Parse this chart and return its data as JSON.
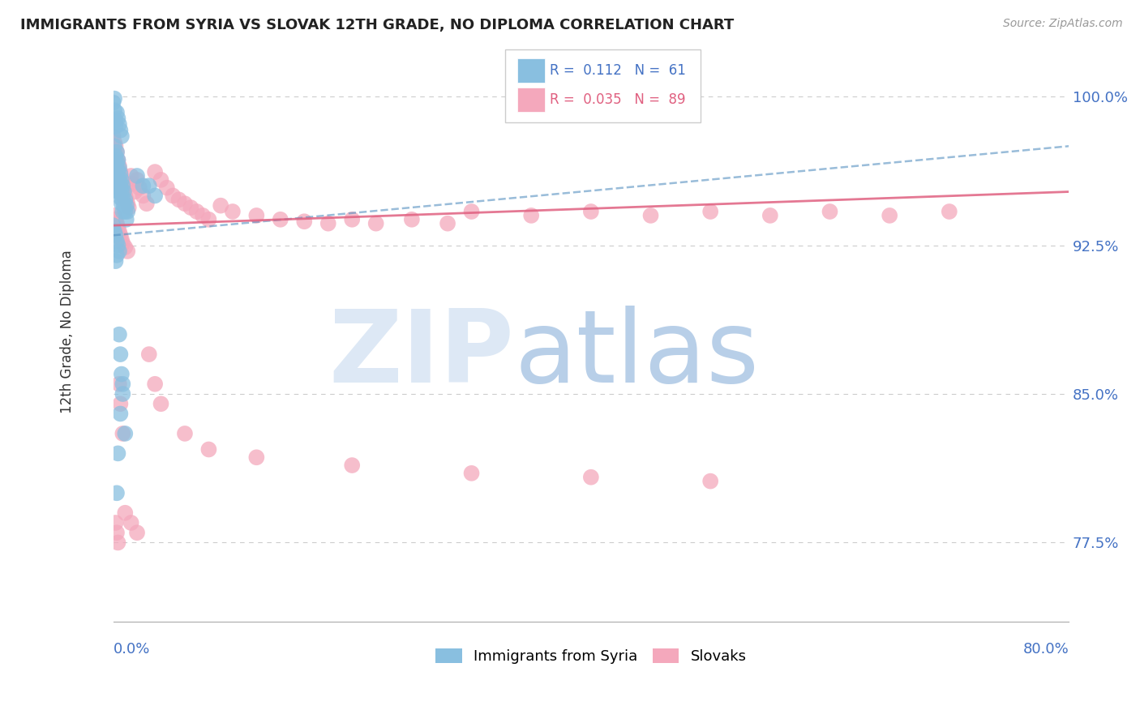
{
  "title": "IMMIGRANTS FROM SYRIA VS SLOVAK 12TH GRADE, NO DIPLOMA CORRELATION CHART",
  "source": "Source: ZipAtlas.com",
  "ylabel": "12th Grade, No Diploma",
  "ytick_labels": [
    "77.5%",
    "85.0%",
    "92.5%",
    "100.0%"
  ],
  "ytick_values": [
    0.775,
    0.85,
    0.925,
    1.0
  ],
  "xlim": [
    0.0,
    0.8
  ],
  "ylim": [
    0.735,
    1.028
  ],
  "blue_color": "#89bfe0",
  "pink_color": "#f4a8bc",
  "blue_line_color": "#5590c0",
  "pink_line_color": "#e06080",
  "blue_trend_x": [
    0.0,
    0.8
  ],
  "blue_trend_y": [
    0.93,
    0.975
  ],
  "pink_trend_x": [
    0.0,
    0.8
  ],
  "pink_trend_y": [
    0.935,
    0.952
  ],
  "syria_x": [
    0.001,
    0.002,
    0.002,
    0.003,
    0.003,
    0.003,
    0.003,
    0.004,
    0.004,
    0.004,
    0.004,
    0.005,
    0.005,
    0.005,
    0.006,
    0.006,
    0.006,
    0.007,
    0.007,
    0.007,
    0.008,
    0.008,
    0.008,
    0.009,
    0.009,
    0.01,
    0.01,
    0.011,
    0.011,
    0.012,
    0.0,
    0.001,
    0.001,
    0.002,
    0.002,
    0.003,
    0.004,
    0.005,
    0.006,
    0.007,
    0.0,
    0.001,
    0.002,
    0.003,
    0.004,
    0.005,
    0.003,
    0.002,
    0.02,
    0.025,
    0.03,
    0.035,
    0.008,
    0.006,
    0.004,
    0.003,
    0.005,
    0.006,
    0.007,
    0.008,
    0.01
  ],
  "syria_y": [
    0.975,
    0.97,
    0.965,
    0.972,
    0.967,
    0.96,
    0.955,
    0.968,
    0.963,
    0.958,
    0.952,
    0.964,
    0.958,
    0.952,
    0.961,
    0.955,
    0.949,
    0.958,
    0.952,
    0.946,
    0.955,
    0.948,
    0.942,
    0.952,
    0.945,
    0.948,
    0.942,
    0.945,
    0.938,
    0.942,
    0.997,
    0.999,
    0.993,
    0.988,
    0.985,
    0.992,
    0.989,
    0.986,
    0.983,
    0.98,
    0.935,
    0.932,
    0.93,
    0.927,
    0.925,
    0.922,
    0.92,
    0.917,
    0.96,
    0.955,
    0.955,
    0.95,
    0.855,
    0.84,
    0.82,
    0.8,
    0.88,
    0.87,
    0.86,
    0.85,
    0.83
  ],
  "slovak_x": [
    0.0,
    0.001,
    0.001,
    0.002,
    0.002,
    0.003,
    0.003,
    0.003,
    0.004,
    0.004,
    0.005,
    0.005,
    0.006,
    0.006,
    0.007,
    0.007,
    0.008,
    0.008,
    0.009,
    0.01,
    0.011,
    0.012,
    0.013,
    0.015,
    0.016,
    0.018,
    0.02,
    0.022,
    0.025,
    0.028,
    0.001,
    0.002,
    0.003,
    0.004,
    0.005,
    0.006,
    0.007,
    0.008,
    0.01,
    0.012,
    0.035,
    0.04,
    0.045,
    0.05,
    0.055,
    0.06,
    0.065,
    0.07,
    0.075,
    0.08,
    0.09,
    0.1,
    0.12,
    0.14,
    0.16,
    0.18,
    0.2,
    0.22,
    0.25,
    0.28,
    0.3,
    0.35,
    0.4,
    0.45,
    0.5,
    0.55,
    0.6,
    0.65,
    0.7,
    0.03,
    0.035,
    0.04,
    0.06,
    0.08,
    0.12,
    0.2,
    0.3,
    0.4,
    0.5,
    0.02,
    0.015,
    0.01,
    0.008,
    0.006,
    0.005,
    0.004,
    0.003,
    0.002
  ],
  "slovak_y": [
    0.98,
    0.977,
    0.972,
    0.975,
    0.968,
    0.972,
    0.967,
    0.961,
    0.968,
    0.962,
    0.965,
    0.959,
    0.962,
    0.956,
    0.959,
    0.953,
    0.956,
    0.95,
    0.953,
    0.95,
    0.948,
    0.946,
    0.944,
    0.96,
    0.956,
    0.952,
    0.958,
    0.954,
    0.95,
    0.946,
    0.94,
    0.938,
    0.936,
    0.934,
    0.932,
    0.93,
    0.928,
    0.926,
    0.924,
    0.922,
    0.962,
    0.958,
    0.954,
    0.95,
    0.948,
    0.946,
    0.944,
    0.942,
    0.94,
    0.938,
    0.945,
    0.942,
    0.94,
    0.938,
    0.937,
    0.936,
    0.938,
    0.936,
    0.938,
    0.936,
    0.942,
    0.94,
    0.942,
    0.94,
    0.942,
    0.94,
    0.942,
    0.94,
    0.942,
    0.87,
    0.855,
    0.845,
    0.83,
    0.822,
    0.818,
    0.814,
    0.81,
    0.808,
    0.806,
    0.78,
    0.785,
    0.79,
    0.83,
    0.845,
    0.855,
    0.775,
    0.78,
    0.785
  ]
}
